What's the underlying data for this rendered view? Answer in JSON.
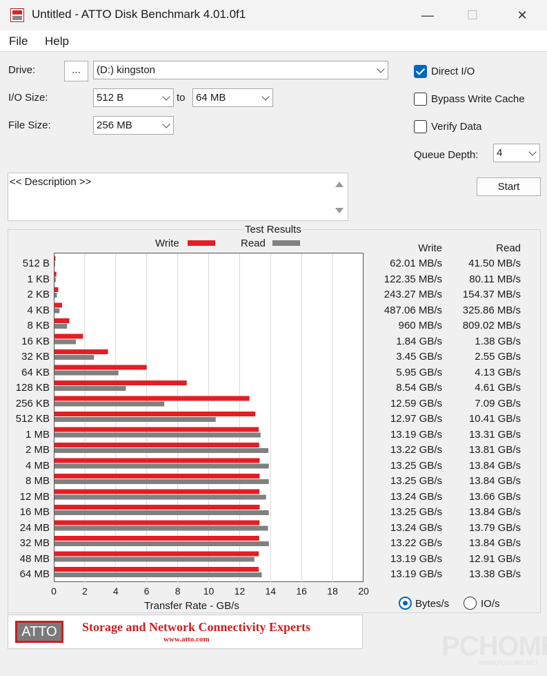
{
  "window": {
    "title": "Untitled - ATTO Disk Benchmark 4.01.0f1",
    "minimize": "—",
    "maximize": "☐",
    "close": "✕"
  },
  "menu": [
    "File",
    "Help"
  ],
  "form": {
    "drive_label": "Drive:",
    "browse_label": "...",
    "drive_value": "(D:) kingston",
    "io_size_label": "I/O Size:",
    "io_from": "512 B",
    "to_label": "to",
    "io_to": "64 MB",
    "file_size_label": "File Size:",
    "file_size": "256 MB",
    "direct_io": {
      "label": "Direct I/O",
      "checked": true
    },
    "bypass_write_cache": {
      "label": "Bypass Write Cache",
      "checked": false
    },
    "verify_data": {
      "label": "Verify Data",
      "checked": false
    },
    "queue_depth_label": "Queue Depth:",
    "queue_depth": "4",
    "start_label": "Start",
    "description": "<< Description >>"
  },
  "results": {
    "title": "Test Results",
    "legend_write": "Write",
    "legend_read": "Read",
    "col_write": "Write",
    "col_read": "Read",
    "write_values": [
      "62.01 MB/s",
      "122.35 MB/s",
      "243.27 MB/s",
      "487.06 MB/s",
      "960 MB/s",
      "1.84 GB/s",
      "3.45 GB/s",
      "5.95 GB/s",
      "8.54 GB/s",
      "12.59 GB/s",
      "12.97 GB/s",
      "13.19 GB/s",
      "13.22 GB/s",
      "13.25 GB/s",
      "13.25 GB/s",
      "13.24 GB/s",
      "13.25 GB/s",
      "13.24 GB/s",
      "13.22 GB/s",
      "13.19 GB/s",
      "13.19 GB/s"
    ],
    "read_values": [
      "41.50 MB/s",
      "80.11 MB/s",
      "154.37 MB/s",
      "325.86 MB/s",
      "809.02 MB/s",
      "1.38 GB/s",
      "2.55 GB/s",
      "4.13 GB/s",
      "4.61 GB/s",
      "7.09 GB/s",
      "10.41 GB/s",
      "13.31 GB/s",
      "13.81 GB/s",
      "13.84 GB/s",
      "13.84 GB/s",
      "13.66 GB/s",
      "13.84 GB/s",
      "13.79 GB/s",
      "13.84 GB/s",
      "12.91 GB/s",
      "13.38 GB/s"
    ],
    "units": {
      "bytes": "Bytes/s",
      "io": "IO/s",
      "selected": "bytes"
    }
  },
  "chart_data": {
    "type": "bar",
    "orientation": "horizontal",
    "categories": [
      "512 B",
      "1 KB",
      "2 KB",
      "4 KB",
      "8 KB",
      "16 KB",
      "32 KB",
      "64 KB",
      "128 KB",
      "256 KB",
      "512 KB",
      "1 MB",
      "2 MB",
      "4 MB",
      "8 MB",
      "12 MB",
      "16 MB",
      "24 MB",
      "32 MB",
      "48 MB",
      "64 MB"
    ],
    "series": [
      {
        "name": "Write",
        "color": "#e31e24",
        "values": [
          0.062,
          0.122,
          0.243,
          0.487,
          0.96,
          1.84,
          3.45,
          5.95,
          8.54,
          12.59,
          12.97,
          13.19,
          13.22,
          13.25,
          13.25,
          13.24,
          13.25,
          13.24,
          13.22,
          13.19,
          13.19
        ]
      },
      {
        "name": "Read",
        "color": "#808080",
        "values": [
          0.0415,
          0.0801,
          0.154,
          0.326,
          0.809,
          1.38,
          2.55,
          4.13,
          4.61,
          7.09,
          10.41,
          13.31,
          13.81,
          13.84,
          13.84,
          13.66,
          13.84,
          13.79,
          13.84,
          12.91,
          13.38
        ]
      }
    ],
    "xlabel": "Transfer Rate - GB/s",
    "xlim": [
      0,
      20
    ],
    "xticks": [
      "0",
      "2",
      "4",
      "6",
      "8",
      "10",
      "12",
      "14",
      "16",
      "18",
      "20"
    ],
    "grid": true,
    "legend": "top-center"
  },
  "banner": {
    "logo": "ATTO",
    "tagline": "Storage and Network Connectivity Experts",
    "url": "www.atto.com"
  },
  "watermark": {
    "text": "PCHOME",
    "sub": "WWW.PCHOME.NET"
  }
}
